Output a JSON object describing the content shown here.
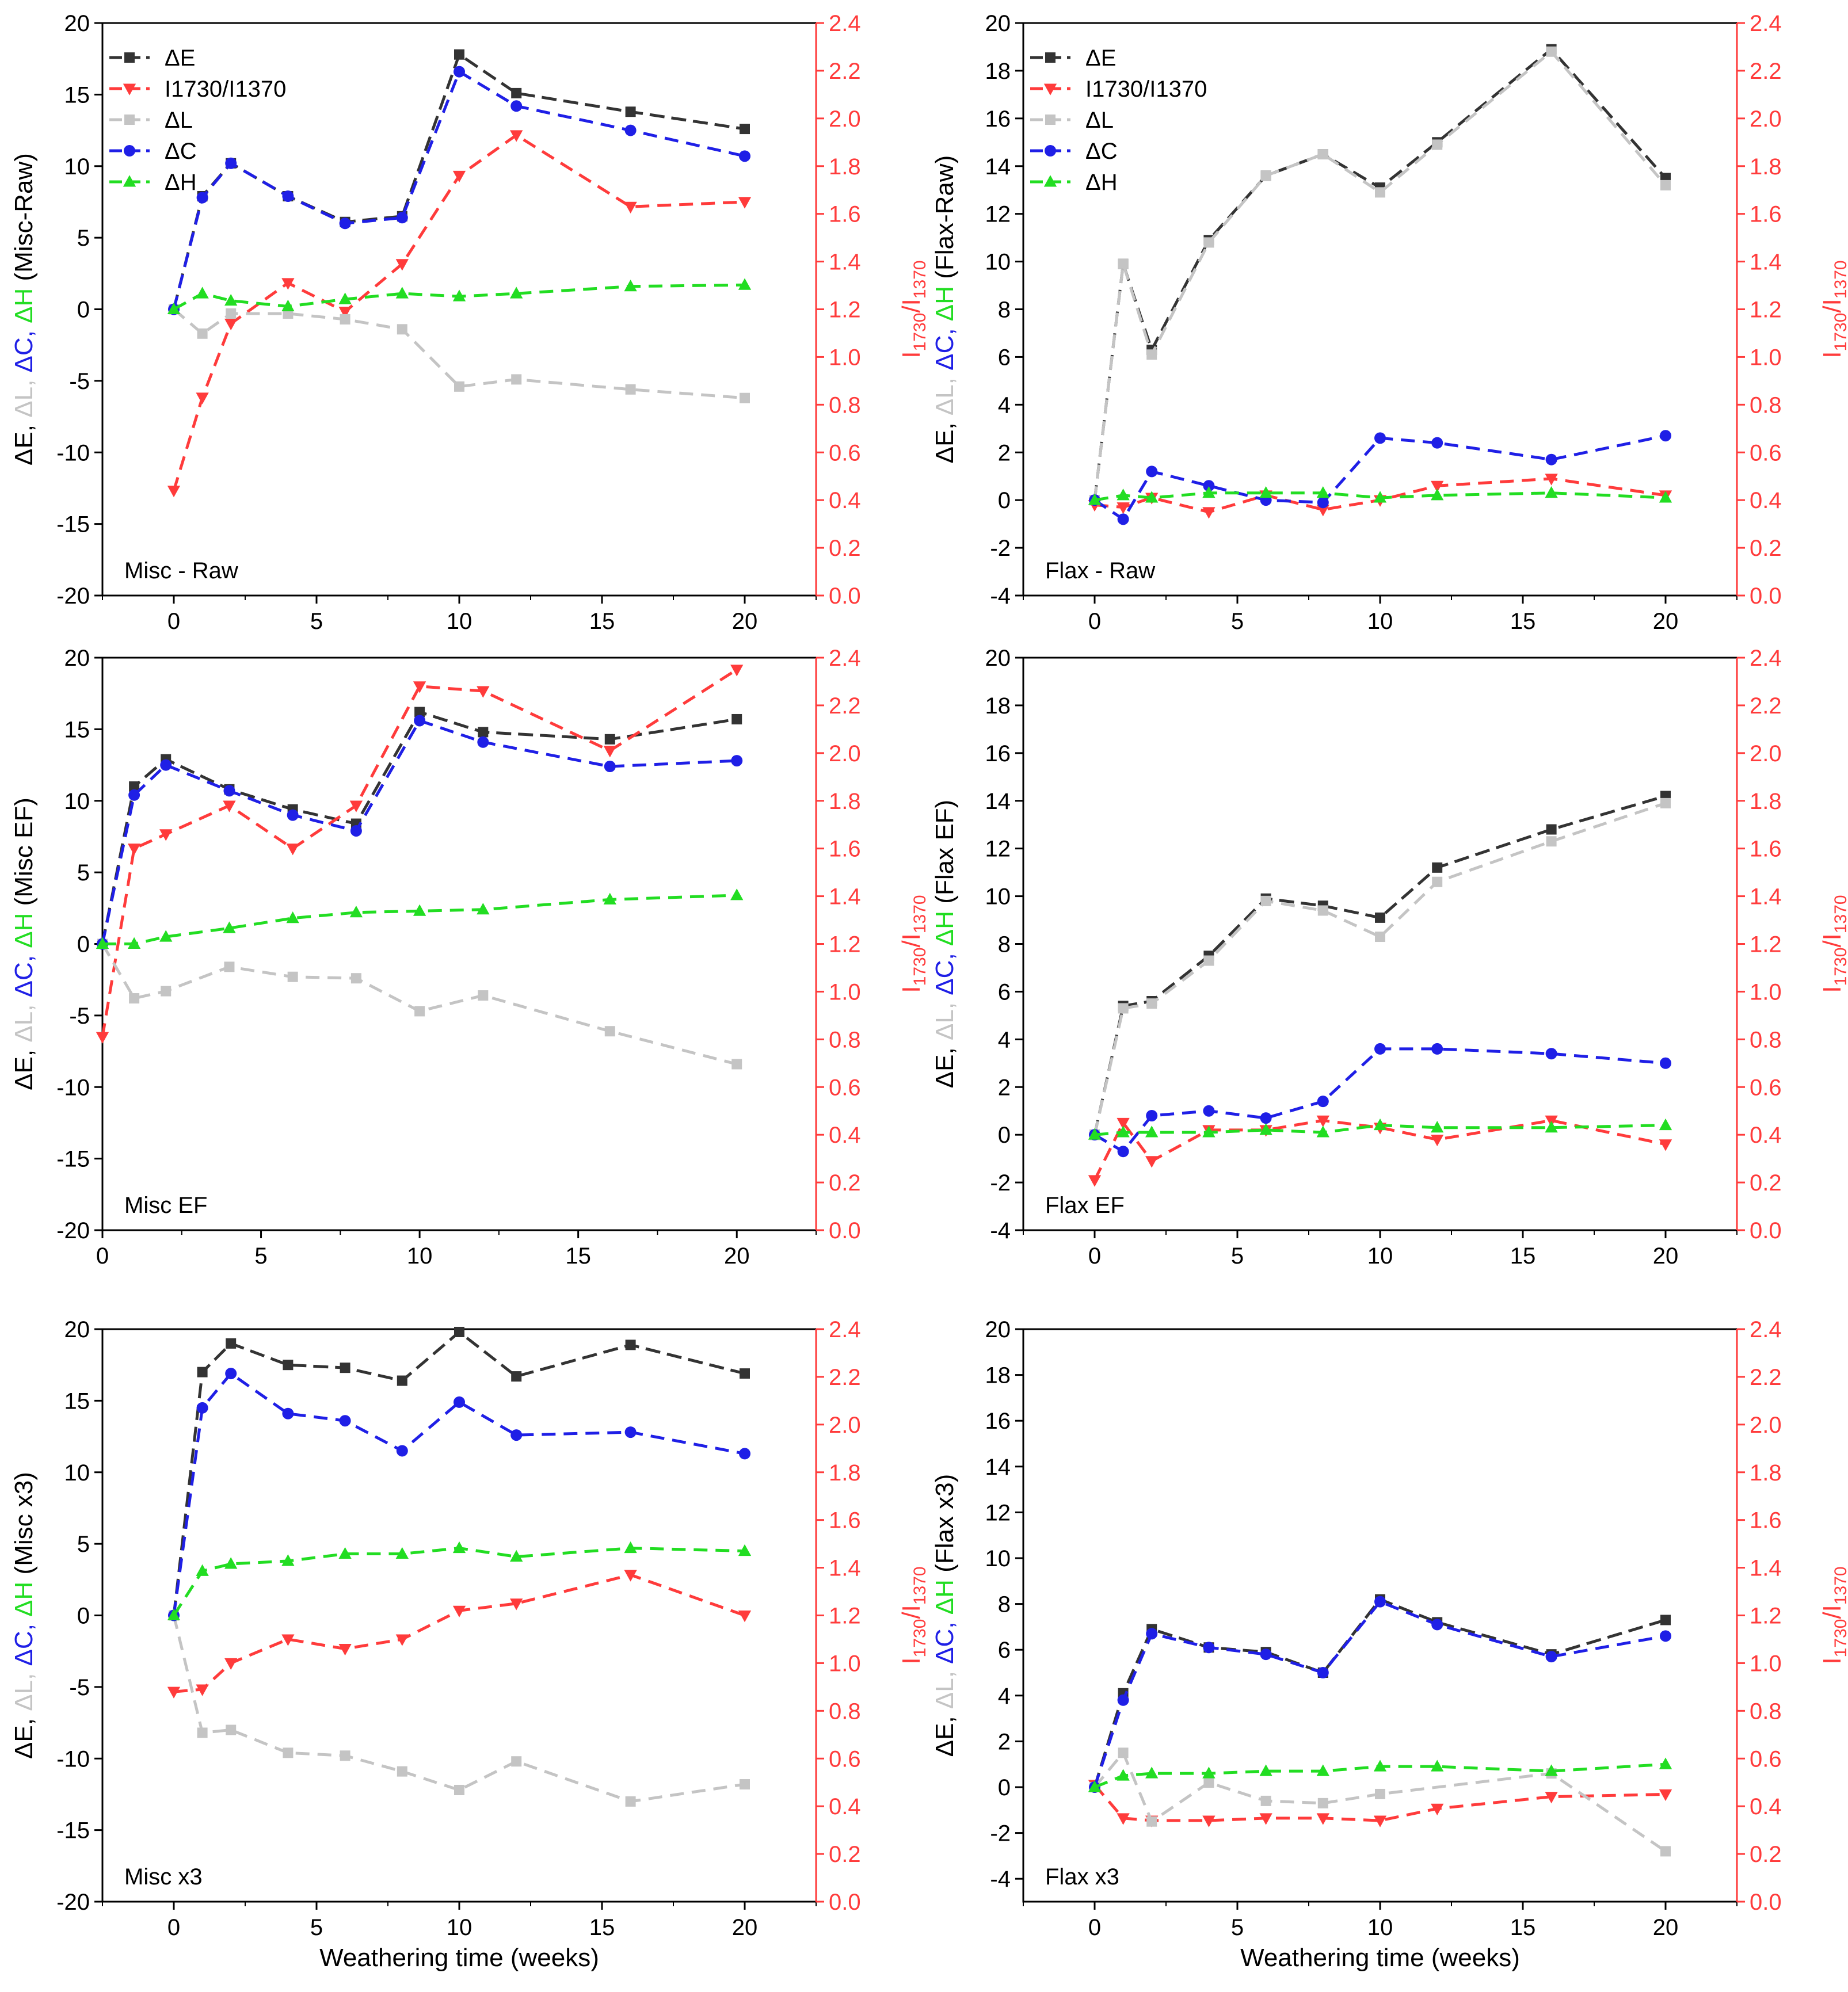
{
  "colors": {
    "dE": "#333333",
    "ratio": "#ff3b3b",
    "dL": "#c4c4c4",
    "dC": "#1f1fe6",
    "dH": "#22dd22",
    "axis": "#000000"
  },
  "legend_entries": [
    "ΔE",
    "I1730/I1370",
    "ΔL",
    "ΔC",
    "ΔH"
  ],
  "chart_data": [
    {
      "type": "line",
      "panel_label": "Misc - Raw",
      "ylabel": {
        "dE": "ΔE, ",
        "dL": "ΔL, ",
        "dC": "ΔC, ",
        "dH": "ΔH",
        "suffix": " (Misc-Raw)"
      },
      "y2label": {
        "base": "I",
        "sub1": "1730",
        "mid": "/I",
        "sub2": "1370"
      },
      "xlabel": "",
      "xlim": [
        -2.5,
        22.5
      ],
      "xticks": [
        0,
        5,
        10,
        15,
        20
      ],
      "ylim": [
        -20,
        20
      ],
      "yticks": [
        -20,
        -15,
        -10,
        -5,
        0,
        5,
        10,
        15,
        20
      ],
      "y2lim": [
        0,
        2.4
      ],
      "y2ticks": [
        "0.0",
        "0.2",
        "0.4",
        "0.6",
        "0.8",
        "1.0",
        "1.2",
        "1.4",
        "1.6",
        "1.8",
        "2.0",
        "2.2",
        "2.4"
      ],
      "legend": true,
      "x": [
        0,
        1,
        2,
        4,
        6,
        8,
        10,
        12,
        16,
        20
      ],
      "series": [
        {
          "name": "ΔE",
          "key": "dE",
          "marker": "square",
          "values": [
            0,
            7.9,
            10.2,
            7.9,
            6.1,
            6.5,
            17.8,
            15.1,
            13.8,
            12.6
          ]
        },
        {
          "name": "I1730/I1370",
          "key": "ratio",
          "marker": "tri-down",
          "axis": "right",
          "values": [
            0.44,
            0.83,
            1.14,
            1.31,
            1.19,
            1.39,
            1.76,
            1.93,
            1.63,
            1.65
          ]
        },
        {
          "name": "ΔL",
          "key": "dL",
          "marker": "square",
          "values": [
            0,
            -1.7,
            -0.3,
            -0.3,
            -0.7,
            -1.4,
            -5.4,
            -4.9,
            -5.6,
            -6.2
          ]
        },
        {
          "name": "ΔC",
          "key": "dC",
          "marker": "circle",
          "values": [
            0,
            7.8,
            10.2,
            7.9,
            6.0,
            6.4,
            16.6,
            14.2,
            12.5,
            10.7
          ]
        },
        {
          "name": "ΔH",
          "key": "dH",
          "marker": "tri-up",
          "values": [
            0,
            1.1,
            0.6,
            0.2,
            0.7,
            1.1,
            0.9,
            1.1,
            1.6,
            1.7
          ]
        }
      ]
    },
    {
      "type": "line",
      "panel_label": "Flax - Raw",
      "ylabel": {
        "dE": "ΔE, ",
        "dL": "ΔL, ",
        "dC": "ΔC, ",
        "dH": "ΔH",
        "suffix": " (Flax-Raw)"
      },
      "y2label": {
        "base": "I",
        "sub1": "1730",
        "mid": "/I",
        "sub2": "1370"
      },
      "xlabel": "",
      "xlim": [
        -2.5,
        22.5
      ],
      "xticks": [
        0,
        5,
        10,
        15,
        20
      ],
      "ylim": [
        -4,
        20
      ],
      "yticks": [
        -4,
        -2,
        0,
        2,
        4,
        6,
        8,
        10,
        12,
        14,
        16,
        18,
        20
      ],
      "y2lim": [
        0,
        2.4
      ],
      "y2ticks": [
        "0.0",
        "0.2",
        "0.4",
        "0.6",
        "0.8",
        "1.0",
        "1.2",
        "1.4",
        "1.6",
        "1.8",
        "2.0",
        "2.2",
        "2.4"
      ],
      "legend": true,
      "x": [
        0,
        1,
        2,
        4,
        6,
        8,
        10,
        12,
        16,
        20
      ],
      "series": [
        {
          "name": "ΔE",
          "key": "dE",
          "marker": "square",
          "values": [
            0,
            9.9,
            6.3,
            10.9,
            13.6,
            14.5,
            13.1,
            15.0,
            18.9,
            13.5
          ]
        },
        {
          "name": "I1730/I1370",
          "key": "ratio",
          "marker": "tri-down",
          "axis": "right",
          "values": [
            0.38,
            0.37,
            0.41,
            0.35,
            0.42,
            0.36,
            0.4,
            0.46,
            0.49,
            0.42
          ]
        },
        {
          "name": "ΔL",
          "key": "dL",
          "marker": "square",
          "values": [
            0,
            9.9,
            6.1,
            10.8,
            13.6,
            14.5,
            12.9,
            14.9,
            18.8,
            13.2
          ]
        },
        {
          "name": "ΔC",
          "key": "dC",
          "marker": "circle",
          "values": [
            0,
            -0.8,
            1.2,
            0.6,
            0.0,
            -0.1,
            2.6,
            2.4,
            1.7,
            2.7
          ]
        },
        {
          "name": "ΔH",
          "key": "dH",
          "marker": "tri-up",
          "values": [
            0,
            0.2,
            0.1,
            0.3,
            0.3,
            0.3,
            0.1,
            0.2,
            0.3,
            0.1
          ]
        }
      ]
    },
    {
      "type": "line",
      "panel_label": "Misc EF",
      "ylabel": {
        "dE": "ΔE, ",
        "dL": "ΔL, ",
        "dC": "ΔC, ",
        "dH": "ΔH",
        "suffix": " (Misc EF)"
      },
      "y2label": {
        "base": "I",
        "sub1": "1730",
        "mid": "/I",
        "sub2": "1370"
      },
      "xlabel": "",
      "xlim": [
        0,
        22.5
      ],
      "xticks": [
        0,
        5,
        10,
        15,
        20
      ],
      "ylim": [
        -20,
        20
      ],
      "yticks": [
        -20,
        -15,
        -10,
        -5,
        0,
        5,
        10,
        15,
        20
      ],
      "y2lim": [
        0,
        2.4
      ],
      "y2ticks": [
        "0.0",
        "0.2",
        "0.4",
        "0.6",
        "0.8",
        "1.0",
        "1.2",
        "1.4",
        "1.6",
        "1.8",
        "2.0",
        "2.2",
        "2.4"
      ],
      "legend": false,
      "x": [
        0,
        1,
        2,
        4,
        6,
        8,
        10,
        12,
        16,
        20
      ],
      "series": [
        {
          "name": "ΔE",
          "key": "dE",
          "marker": "square",
          "values": [
            0,
            11.0,
            12.9,
            10.8,
            9.4,
            8.4,
            16.2,
            14.8,
            14.3,
            15.7
          ]
        },
        {
          "name": "I1730/I1370",
          "key": "ratio",
          "marker": "tri-down",
          "axis": "right",
          "values": [
            0.81,
            1.6,
            1.66,
            1.78,
            1.6,
            1.78,
            2.28,
            2.26,
            2.01,
            2.35
          ]
        },
        {
          "name": "ΔL",
          "key": "dL",
          "marker": "square",
          "values": [
            0,
            -3.8,
            -3.3,
            -1.6,
            -2.3,
            -2.4,
            -4.7,
            -3.6,
            -6.1,
            -8.4
          ]
        },
        {
          "name": "ΔC",
          "key": "dC",
          "marker": "circle",
          "values": [
            0,
            10.4,
            12.5,
            10.7,
            9.0,
            7.9,
            15.6,
            14.1,
            12.4,
            12.8
          ]
        },
        {
          "name": "ΔH",
          "key": "dH",
          "marker": "tri-up",
          "values": [
            0,
            0.0,
            0.5,
            1.1,
            1.8,
            2.2,
            2.3,
            2.4,
            3.1,
            3.4
          ]
        }
      ]
    },
    {
      "type": "line",
      "panel_label": "Flax EF",
      "ylabel": {
        "dE": "ΔE, ",
        "dL": "ΔL, ",
        "dC": "ΔC, ",
        "dH": "ΔH",
        "suffix": " (Flax EF)"
      },
      "y2label": {
        "base": "I",
        "sub1": "1730",
        "mid": "/I",
        "sub2": "1370"
      },
      "xlabel": "",
      "xlim": [
        -2.5,
        22.5
      ],
      "xticks": [
        0,
        5,
        10,
        15,
        20
      ],
      "ylim": [
        -4,
        20
      ],
      "yticks": [
        -4,
        -2,
        0,
        2,
        4,
        6,
        8,
        10,
        12,
        14,
        16,
        18,
        20
      ],
      "y2lim": [
        0,
        2.4
      ],
      "y2ticks": [
        "0.0",
        "0.2",
        "0.4",
        "0.6",
        "0.8",
        "1.0",
        "1.2",
        "1.4",
        "1.6",
        "1.8",
        "2.0",
        "2.2",
        "2.4"
      ],
      "legend": false,
      "x": [
        0,
        1,
        2,
        4,
        6,
        8,
        10,
        12,
        16,
        20
      ],
      "series": [
        {
          "name": "ΔE",
          "key": "dE",
          "marker": "square",
          "values": [
            0,
            5.4,
            5.6,
            7.5,
            9.9,
            9.6,
            9.1,
            11.2,
            12.8,
            14.2
          ]
        },
        {
          "name": "I1730/I1370",
          "key": "ratio",
          "marker": "tri-down",
          "axis": "right",
          "values": [
            0.21,
            0.45,
            0.29,
            0.42,
            0.42,
            0.46,
            0.43,
            0.38,
            0.46,
            0.36
          ]
        },
        {
          "name": "ΔL",
          "key": "dL",
          "marker": "square",
          "values": [
            0,
            5.3,
            5.5,
            7.3,
            9.8,
            9.4,
            8.3,
            10.6,
            12.3,
            13.9
          ]
        },
        {
          "name": "ΔC",
          "key": "dC",
          "marker": "circle",
          "values": [
            0,
            -0.7,
            0.8,
            1.0,
            0.7,
            1.4,
            3.6,
            3.6,
            3.4,
            3.0
          ]
        },
        {
          "name": "ΔH",
          "key": "dH",
          "marker": "tri-up",
          "values": [
            0,
            0.1,
            0.1,
            0.1,
            0.2,
            0.1,
            0.4,
            0.3,
            0.3,
            0.4
          ]
        }
      ]
    },
    {
      "type": "line",
      "panel_label": "Misc x3",
      "ylabel": {
        "dE": "ΔE, ",
        "dL": "ΔL, ",
        "dC": "ΔC, ",
        "dH": "ΔH",
        "suffix": " (Misc x3)"
      },
      "y2label": {
        "base": "I",
        "sub1": "1730",
        "mid": "/I",
        "sub2": "1370"
      },
      "xlabel": "Weathering time (weeks)",
      "xlim": [
        -2.5,
        22.5
      ],
      "xticks": [
        0,
        5,
        10,
        15,
        20
      ],
      "ylim": [
        -20,
        20
      ],
      "yticks": [
        -20,
        -15,
        -10,
        -5,
        0,
        5,
        10,
        15,
        20
      ],
      "y2lim": [
        0,
        2.4
      ],
      "y2ticks": [
        "0.0",
        "0.2",
        "0.4",
        "0.6",
        "0.8",
        "1.0",
        "1.2",
        "1.4",
        "1.6",
        "1.8",
        "2.0",
        "2.2",
        "2.4"
      ],
      "legend": false,
      "x": [
        0,
        1,
        2,
        4,
        6,
        8,
        10,
        12,
        16,
        20
      ],
      "series": [
        {
          "name": "ΔE",
          "key": "dE",
          "marker": "square",
          "values": [
            0,
            17.0,
            19.0,
            17.5,
            17.3,
            16.4,
            19.8,
            16.7,
            18.9,
            16.9
          ]
        },
        {
          "name": "I1730/I1370",
          "key": "ratio",
          "marker": "tri-down",
          "axis": "right",
          "values": [
            0.88,
            0.89,
            1.0,
            1.1,
            1.06,
            1.1,
            1.22,
            1.25,
            1.37,
            1.2
          ]
        },
        {
          "name": "ΔL",
          "key": "dL",
          "marker": "square",
          "values": [
            0,
            -8.2,
            -8.0,
            -9.6,
            -9.8,
            -10.9,
            -12.2,
            -10.2,
            -13.0,
            -11.8
          ]
        },
        {
          "name": "ΔC",
          "key": "dC",
          "marker": "circle",
          "values": [
            0,
            14.5,
            16.9,
            14.1,
            13.6,
            11.5,
            14.9,
            12.6,
            12.8,
            11.3
          ]
        },
        {
          "name": "ΔH",
          "key": "dH",
          "marker": "tri-up",
          "values": [
            0,
            3.1,
            3.6,
            3.8,
            4.3,
            4.3,
            4.7,
            4.1,
            4.7,
            4.5
          ]
        }
      ]
    },
    {
      "type": "line",
      "panel_label": "Flax x3",
      "ylabel": {
        "dE": "ΔE, ",
        "dL": "ΔL, ",
        "dC": "ΔC, ",
        "dH": "ΔH",
        "suffix": " (Flax x3)"
      },
      "y2label": {
        "base": "I",
        "sub1": "1730",
        "mid": "/I",
        "sub2": "1370"
      },
      "xlabel": "Weathering time (weeks)",
      "xlim": [
        -2.5,
        22.5
      ],
      "xticks": [
        0,
        5,
        10,
        15,
        20
      ],
      "ylim": [
        -5,
        20
      ],
      "yticks": [
        -4,
        -2,
        0,
        2,
        4,
        6,
        8,
        10,
        12,
        14,
        16,
        18,
        20
      ],
      "y2lim": [
        0,
        2.4
      ],
      "y2ticks": [
        "0.0",
        "0.2",
        "0.4",
        "0.6",
        "0.8",
        "1.0",
        "1.2",
        "1.4",
        "1.6",
        "1.8",
        "2.0",
        "2.2",
        "2.4"
      ],
      "legend": false,
      "x": [
        0,
        1,
        2,
        4,
        6,
        8,
        10,
        12,
        16,
        20
      ],
      "series": [
        {
          "name": "ΔE",
          "key": "dE",
          "marker": "square",
          "values": [
            0,
            4.1,
            6.9,
            6.1,
            5.9,
            5.0,
            8.2,
            7.2,
            5.8,
            7.3
          ]
        },
        {
          "name": "I1730/I1370",
          "key": "ratio",
          "marker": "tri-down",
          "axis": "right",
          "values": [
            0.49,
            0.35,
            0.34,
            0.34,
            0.35,
            0.35,
            0.34,
            0.39,
            0.44,
            0.45
          ]
        },
        {
          "name": "ΔL",
          "key": "dL",
          "marker": "square",
          "values": [
            0,
            1.5,
            -1.5,
            0.2,
            -0.6,
            -0.7,
            -0.3,
            null,
            0.6,
            -2.8
          ]
        },
        {
          "name": "ΔC",
          "key": "dC",
          "marker": "circle",
          "values": [
            0,
            3.8,
            6.7,
            6.1,
            5.8,
            5.0,
            8.1,
            7.1,
            5.7,
            6.6
          ]
        },
        {
          "name": "ΔH",
          "key": "dH",
          "marker": "tri-up",
          "values": [
            0,
            0.5,
            0.6,
            0.6,
            0.7,
            0.7,
            0.9,
            0.9,
            0.7,
            1.0
          ]
        }
      ]
    }
  ]
}
